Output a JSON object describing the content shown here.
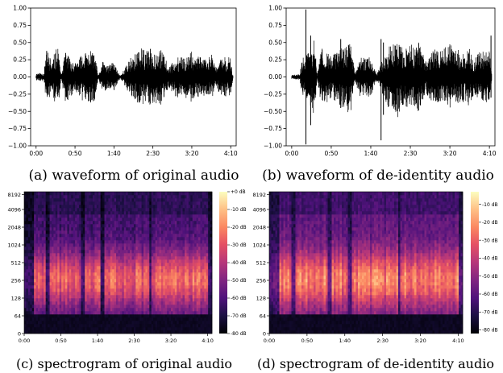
{
  "captions": [
    "(a) waveform of original audio",
    "(b) waveform of de-identity audio",
    "(c) spectrogram of original audio",
    "(d) spectrogram of de-identity audio"
  ],
  "chart_data": [
    {
      "panel": "a",
      "type": "line",
      "title": "",
      "xlabel": "",
      "ylabel": "",
      "x_ticks": [
        "0:00",
        "0:50",
        "1:40",
        "2:30",
        "3:20",
        "4:10"
      ],
      "x_tick_seconds": [
        0,
        50,
        100,
        150,
        200,
        250
      ],
      "xlim_seconds": [
        -7,
        257
      ],
      "y_ticks": [
        "1.00",
        "0.75",
        "0.50",
        "0.25",
        "0.00",
        "−0.25",
        "−0.50",
        "−0.75",
        "−1.00"
      ],
      "y_tick_values": [
        1,
        0.75,
        0.5,
        0.25,
        0,
        -0.25,
        -0.5,
        -0.75,
        -1
      ],
      "ylim": [
        -1,
        1
      ],
      "grid": false,
      "series_color": "#000000",
      "envelope": {
        "seconds": [
          0,
          10,
          14,
          20,
          25,
          29,
          32,
          38,
          45,
          50,
          60,
          70,
          75,
          80,
          85,
          95,
          100,
          108,
          115,
          122,
          128,
          135,
          140,
          148,
          155,
          160,
          165,
          170,
          180,
          190,
          200,
          205,
          210,
          220,
          225,
          230,
          240,
          250,
          253
        ],
        "peak": [
          0.06,
          0.06,
          0.45,
          0.22,
          0.4,
          0.42,
          0.02,
          0.38,
          0.28,
          0.2,
          0.35,
          0.38,
          0.35,
          0.02,
          0.22,
          0.18,
          0.22,
          0.02,
          0.15,
          0.3,
          0.35,
          0.42,
          0.38,
          0.42,
          0.38,
          0.42,
          0.3,
          0.15,
          0.3,
          0.28,
          0.38,
          0.28,
          0.3,
          0.25,
          0.35,
          0.15,
          0.3,
          0.28,
          0.02
        ]
      }
    },
    {
      "panel": "b",
      "type": "line",
      "title": "",
      "xlabel": "",
      "ylabel": "",
      "x_ticks": [
        "0:00",
        "0:50",
        "1:40",
        "2:30",
        "3:20",
        "4:10"
      ],
      "x_tick_seconds": [
        0,
        50,
        100,
        150,
        200,
        250
      ],
      "xlim_seconds": [
        -7,
        257
      ],
      "y_ticks": [
        "1.00",
        "0.75",
        "0.50",
        "0.25",
        "0.00",
        "−0.25",
        "−0.50",
        "−0.75",
        "−1.00"
      ],
      "y_tick_values": [
        1,
        0.75,
        0.5,
        0.25,
        0,
        -0.25,
        -0.5,
        -0.75,
        -1
      ],
      "ylim": [
        -1,
        1
      ],
      "grid": false,
      "series_color": "#000000",
      "envelope": {
        "seconds": [
          0,
          10,
          14,
          20,
          25,
          29,
          32,
          38,
          45,
          50,
          60,
          70,
          75,
          80,
          85,
          95,
          100,
          108,
          115,
          122,
          128,
          135,
          140,
          148,
          155,
          160,
          165,
          170,
          180,
          190,
          200,
          205,
          210,
          220,
          225,
          230,
          240,
          250,
          253
        ],
        "peak": [
          0.03,
          0.04,
          0.3,
          0.35,
          0.5,
          0.55,
          0.02,
          0.45,
          0.38,
          0.3,
          0.42,
          0.5,
          0.55,
          0.04,
          0.3,
          0.28,
          0.3,
          0.05,
          0.25,
          0.45,
          0.5,
          0.6,
          0.45,
          0.5,
          0.45,
          0.52,
          0.4,
          0.25,
          0.4,
          0.38,
          0.5,
          0.38,
          0.4,
          0.35,
          0.45,
          0.25,
          0.4,
          0.38,
          0.04
        ]
      },
      "spikes": [
        {
          "second": 18,
          "high": 0.98,
          "low": -0.98
        },
        {
          "second": 24,
          "high": 0.6,
          "low": -0.7
        },
        {
          "second": 62,
          "high": 0.55,
          "low": -0.45
        },
        {
          "second": 113,
          "high": 0.55,
          "low": -0.92
        },
        {
          "second": 116,
          "high": 0.5,
          "low": -0.55
        },
        {
          "second": 252,
          "high": 0.6,
          "low": -0.3
        }
      ]
    },
    {
      "panel": "c",
      "type": "heatmap",
      "title": "",
      "xlabel": "",
      "ylabel": "",
      "x_ticks": [
        "0:00",
        "0:50",
        "1:40",
        "2:30",
        "3:20",
        "4:10"
      ],
      "x_tick_seconds": [
        0,
        50,
        100,
        150,
        200,
        250
      ],
      "xlim_seconds": [
        0,
        256
      ],
      "y_ticks": [
        "0",
        "64",
        "128",
        "256",
        "512",
        "1024",
        "2048",
        "4096",
        "8192"
      ],
      "y_scale": "log (symlog)",
      "ylim_hz": [
        0,
        11025
      ],
      "colormap": "magma",
      "colorbar_ticks": [
        "+0 dB",
        "-10 dB",
        "-20 dB",
        "-30 dB",
        "-40 dB",
        "-50 dB",
        "-60 dB",
        "-70 dB",
        "-80 dB"
      ],
      "colorbar_range_db": [
        -80,
        0
      ]
    },
    {
      "panel": "d",
      "type": "heatmap",
      "title": "",
      "xlabel": "",
      "ylabel": "",
      "x_ticks": [
        "0:00",
        "0:50",
        "1:40",
        "2:30",
        "3:20",
        "4:10"
      ],
      "x_tick_seconds": [
        0,
        50,
        100,
        150,
        200,
        250
      ],
      "xlim_seconds": [
        0,
        256
      ],
      "y_ticks": [
        "0",
        "64",
        "128",
        "256",
        "512",
        "1024",
        "2048",
        "4096",
        "8192"
      ],
      "y_scale": "log (symlog)",
      "ylim_hz": [
        0,
        11025
      ],
      "colormap": "magma",
      "colorbar_ticks": [
        "-10 dB",
        "-20 dB",
        "-30 dB",
        "-40 dB",
        "-50 dB",
        "-60 dB",
        "-70 dB",
        "-80 dB"
      ],
      "colorbar_range_db": [
        -82,
        -3
      ]
    }
  ]
}
